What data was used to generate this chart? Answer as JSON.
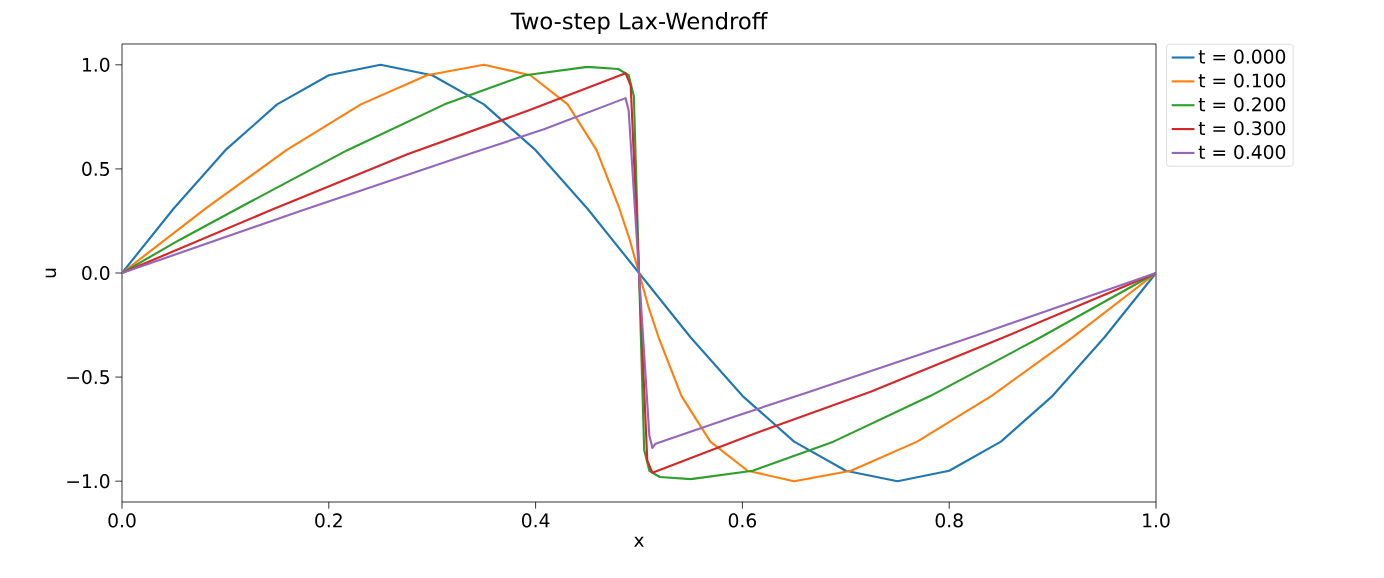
{
  "chart_data": {
    "type": "line",
    "title": "Two-step Lax-Wendroff",
    "xlabel": "x",
    "ylabel": "u",
    "xlim": [
      0,
      1
    ],
    "ylim": [
      -1.1,
      1.1
    ],
    "xticks": [
      {
        "value": 0,
        "label": "0.0"
      },
      {
        "value": 0.2,
        "label": "0.2"
      },
      {
        "value": 0.4,
        "label": "0.4"
      },
      {
        "value": 0.6,
        "label": "0.6"
      },
      {
        "value": 0.8,
        "label": "0.8"
      },
      {
        "value": 1,
        "label": "1.0"
      }
    ],
    "yticks": [
      {
        "value": -1,
        "label": "−1.0"
      },
      {
        "value": -0.5,
        "label": "−0.5"
      },
      {
        "value": 0,
        "label": "0.0"
      },
      {
        "value": 0.5,
        "label": "0.5"
      },
      {
        "value": 1,
        "label": "1.0"
      }
    ],
    "grid": false,
    "legend": "top right",
    "series": [
      {
        "name": "t = 0.000",
        "color": "#1f77b4",
        "x": [
          0,
          0.05,
          0.1,
          0.15,
          0.2,
          0.25,
          0.3,
          0.35,
          0.4,
          0.45,
          0.5,
          0.55,
          0.6,
          0.65,
          0.7,
          0.75,
          0.8,
          0.85,
          0.9,
          0.95,
          1
        ],
        "values": [
          0,
          0.31,
          0.59,
          0.81,
          0.95,
          1,
          0.95,
          0.81,
          0.59,
          0.31,
          0,
          -0.31,
          -0.59,
          -0.81,
          -0.95,
          -1,
          -0.95,
          -0.81,
          -0.59,
          -0.31,
          0
        ]
      },
      {
        "name": "t = 0.100",
        "color": "#ff7f0e",
        "x": [
          0,
          0.081,
          0.159,
          0.231,
          0.295,
          0.35,
          0.395,
          0.431,
          0.459,
          0.481,
          0.491,
          0.5,
          0.509,
          0.519,
          0.541,
          0.569,
          0.605,
          0.65,
          0.705,
          0.769,
          0.841,
          0.919,
          1
        ],
        "values": [
          0,
          0.31,
          0.59,
          0.81,
          0.95,
          1,
          0.95,
          0.81,
          0.59,
          0.31,
          0.16,
          0,
          -0.16,
          -0.31,
          -0.59,
          -0.81,
          -0.95,
          -1,
          -0.95,
          -0.81,
          -0.59,
          -0.31,
          0
        ]
      },
      {
        "name": "t = 0.200",
        "color": "#2ca02c",
        "x": [
          0,
          0.056,
          0.112,
          0.218,
          0.312,
          0.39,
          0.45,
          0.48,
          0.49,
          0.495,
          0.5,
          0.505,
          0.51,
          0.52,
          0.55,
          0.61,
          0.688,
          0.782,
          0.888,
          1
        ],
        "values": [
          0,
          0.16,
          0.31,
          0.59,
          0.81,
          0.95,
          0.99,
          0.98,
          0.95,
          0.85,
          0,
          -0.85,
          -0.95,
          -0.98,
          -0.99,
          -0.95,
          -0.81,
          -0.59,
          -0.31,
          0
        ]
      },
      {
        "name": "t = 0.300",
        "color": "#d62728",
        "x": [
          0,
          0.143,
          0.276,
          0.393,
          0.487,
          0.492,
          0.5,
          0.508,
          0.513,
          0.607,
          0.724,
          0.857,
          1
        ],
        "values": [
          0,
          0.3,
          0.57,
          0.78,
          0.96,
          0.9,
          0,
          -0.9,
          -0.96,
          -0.78,
          -0.57,
          -0.3,
          0
        ]
      },
      {
        "name": "t = 0.400",
        "color": "#9467bd",
        "x": [
          0,
          0.174,
          0.335,
          0.408,
          0.487,
          0.49,
          0.5,
          0.51,
          0.513,
          0.516,
          0.592,
          0.665,
          0.826,
          1
        ],
        "values": [
          0,
          0.3,
          0.57,
          0.69,
          0.84,
          0.78,
          0,
          -0.78,
          -0.84,
          -0.82,
          -0.69,
          -0.57,
          -0.3,
          0
        ]
      }
    ]
  }
}
